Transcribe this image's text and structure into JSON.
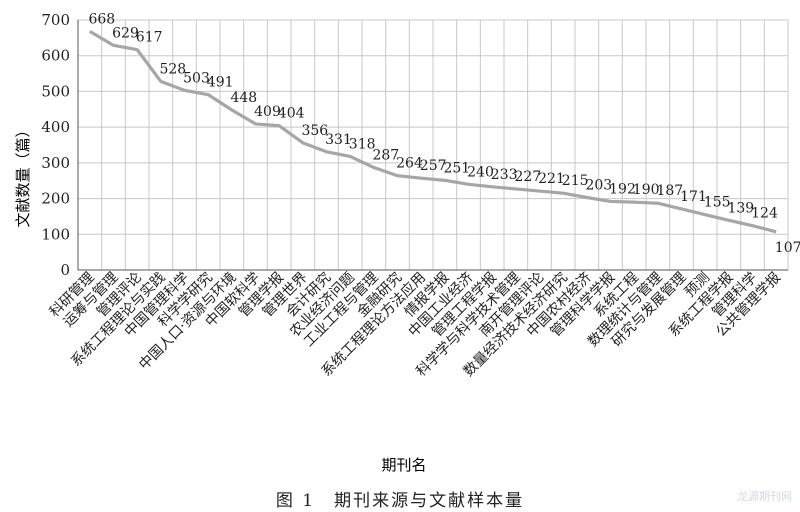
{
  "figure": {
    "caption": "图 1　期刊来源与文献样本量",
    "watermark": "龙源期刊网"
  },
  "chart_data": {
    "type": "line",
    "title": "",
    "xlabel": "期刊名",
    "ylabel": "文献数量（篇）",
    "ylim": [
      0,
      700
    ],
    "yticks": [
      0,
      100,
      200,
      300,
      400,
      500,
      600,
      700
    ],
    "grid": true,
    "legend": "none",
    "line_color": "#a6a6a6",
    "categories": [
      "科研管理",
      "运筹与管理",
      "管理评论",
      "系统工程理论与实践",
      "中国管理科学",
      "科学学研究",
      "中国人口·资源与环境",
      "中国软科学",
      "管理学报",
      "管理世界",
      "会计研究",
      "农业经济问题",
      "工业工程与管理",
      "金融研究",
      "系统工程理论方法应用",
      "情报学报",
      "中国工业经济",
      "管理工程学报",
      "科学学与科学技术管理",
      "南开管理评论",
      "数量经济技术经济研究",
      "中国农村经济",
      "管理科学学报",
      "系统工程",
      "数理统计与管理",
      "研究与发展管理",
      "预测",
      "系统工程学报",
      "管理科学",
      "公共管理学报"
    ],
    "values": [
      668,
      629,
      617,
      528,
      503,
      491,
      448,
      409,
      404,
      356,
      331,
      318,
      287,
      264,
      257,
      251,
      240,
      233,
      227,
      221,
      215,
      203,
      192,
      190,
      187,
      171,
      155,
      139,
      124,
      107
    ]
  }
}
